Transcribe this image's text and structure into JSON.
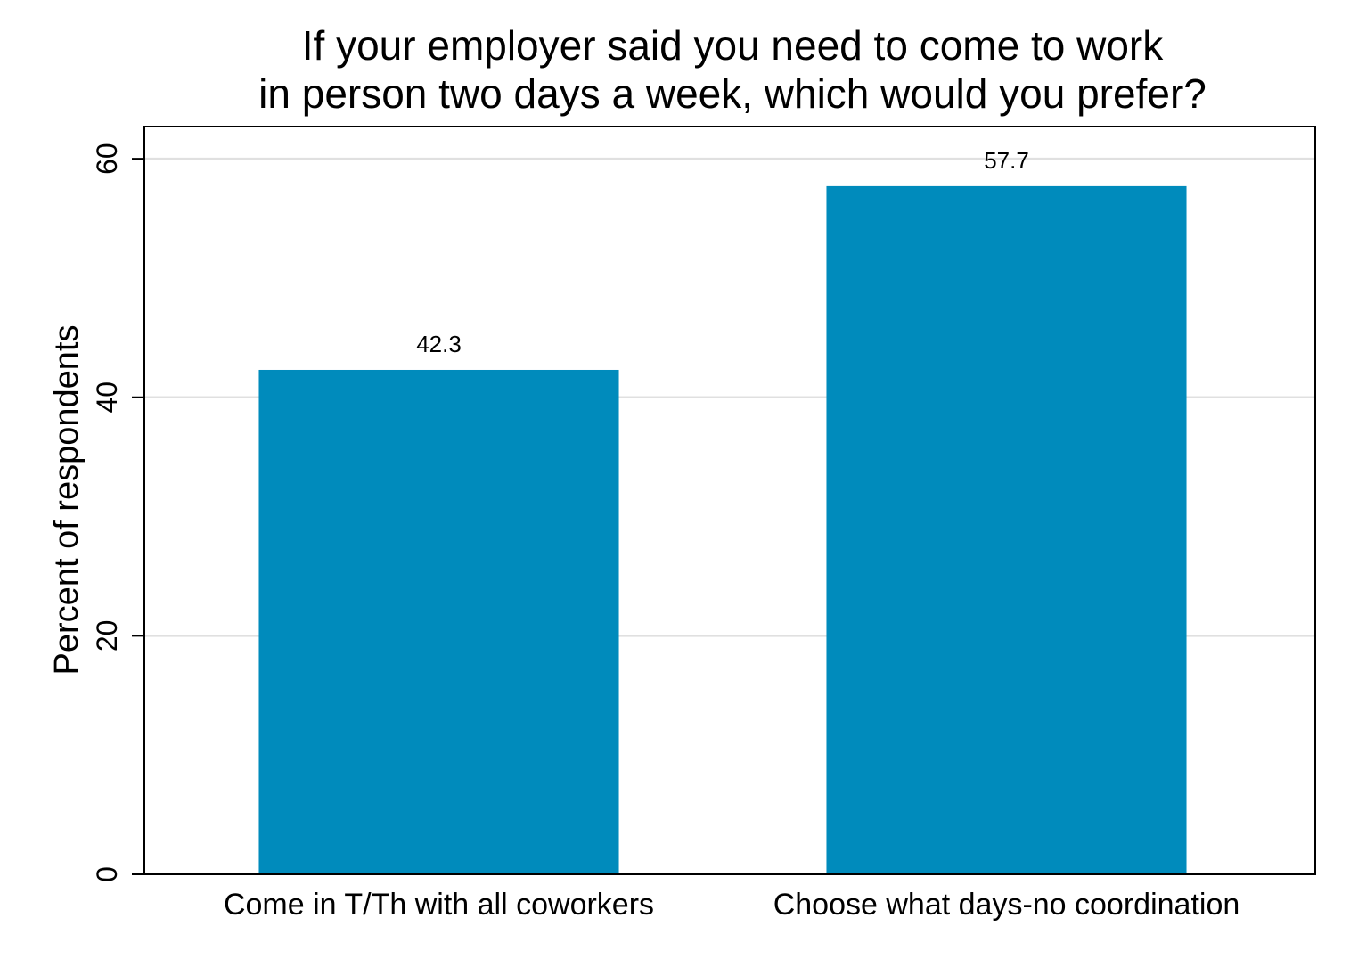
{
  "chart_data": {
    "type": "bar",
    "title_lines": [
      "If your employer said you need to come to work",
      "in person two days a week, which would you prefer?"
    ],
    "categories": [
      "Come in T/Th with all coworkers",
      "Choose what days-no coordination"
    ],
    "values": [
      42.3,
      57.7
    ],
    "value_labels": [
      "42.3",
      "57.7"
    ],
    "xlabel": "",
    "ylabel": "Percent of respondents",
    "ylim": [
      0,
      62.7
    ],
    "yticks": [
      0,
      20,
      40,
      60
    ],
    "ytick_labels": [
      "0",
      "20",
      "40",
      "60"
    ],
    "grid": true,
    "bar_color": "#008bbc",
    "grid_color": "#e0e0e0"
  }
}
